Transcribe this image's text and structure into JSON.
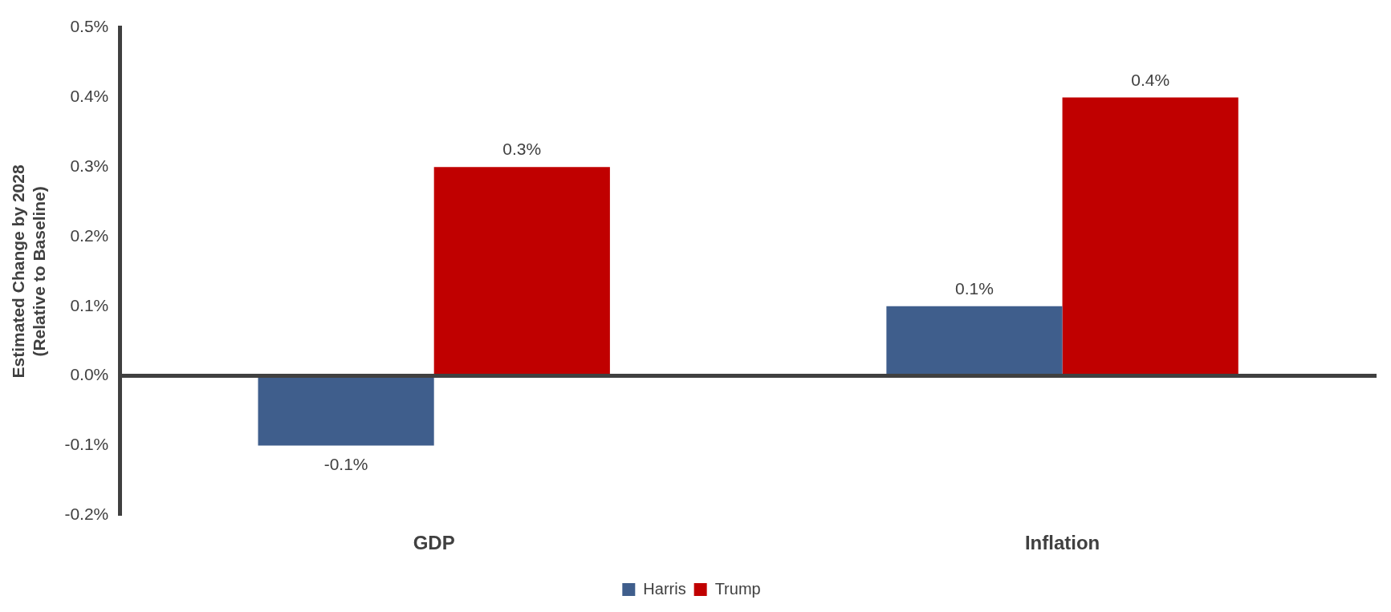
{
  "chart_data": {
    "type": "bar",
    "ylabel": "Estimated Change by 2028\n(Relative to Baseline)",
    "categories": [
      "GDP",
      "Inflation"
    ],
    "series": [
      {
        "name": "Harris",
        "color": "#3f5e8c",
        "values": [
          -0.1,
          0.1
        ],
        "value_labels": [
          "-0.1%",
          "0.1%"
        ]
      },
      {
        "name": "Trump",
        "color": "#c00000",
        "values": [
          0.3,
          0.4
        ],
        "value_labels": [
          "0.3%",
          "0.4%"
        ]
      }
    ],
    "ylim": [
      -0.2,
      0.5
    ],
    "yticks": [
      {
        "value": -0.2,
        "label": "-0.2%"
      },
      {
        "value": -0.1,
        "label": "-0.1%"
      },
      {
        "value": 0,
        "label": "0.0%"
      },
      {
        "value": 0.1,
        "label": "0.1%"
      },
      {
        "value": 0.2,
        "label": "0.2%"
      },
      {
        "value": 0.3,
        "label": "0.3%"
      },
      {
        "value": 0.4,
        "label": "0.4%"
      },
      {
        "value": 0.5,
        "label": "0.5%"
      }
    ],
    "ref_lines": [
      {
        "axis": "y",
        "value": 0,
        "color": "#404040"
      }
    ],
    "grid": false,
    "legend": "bottom"
  }
}
